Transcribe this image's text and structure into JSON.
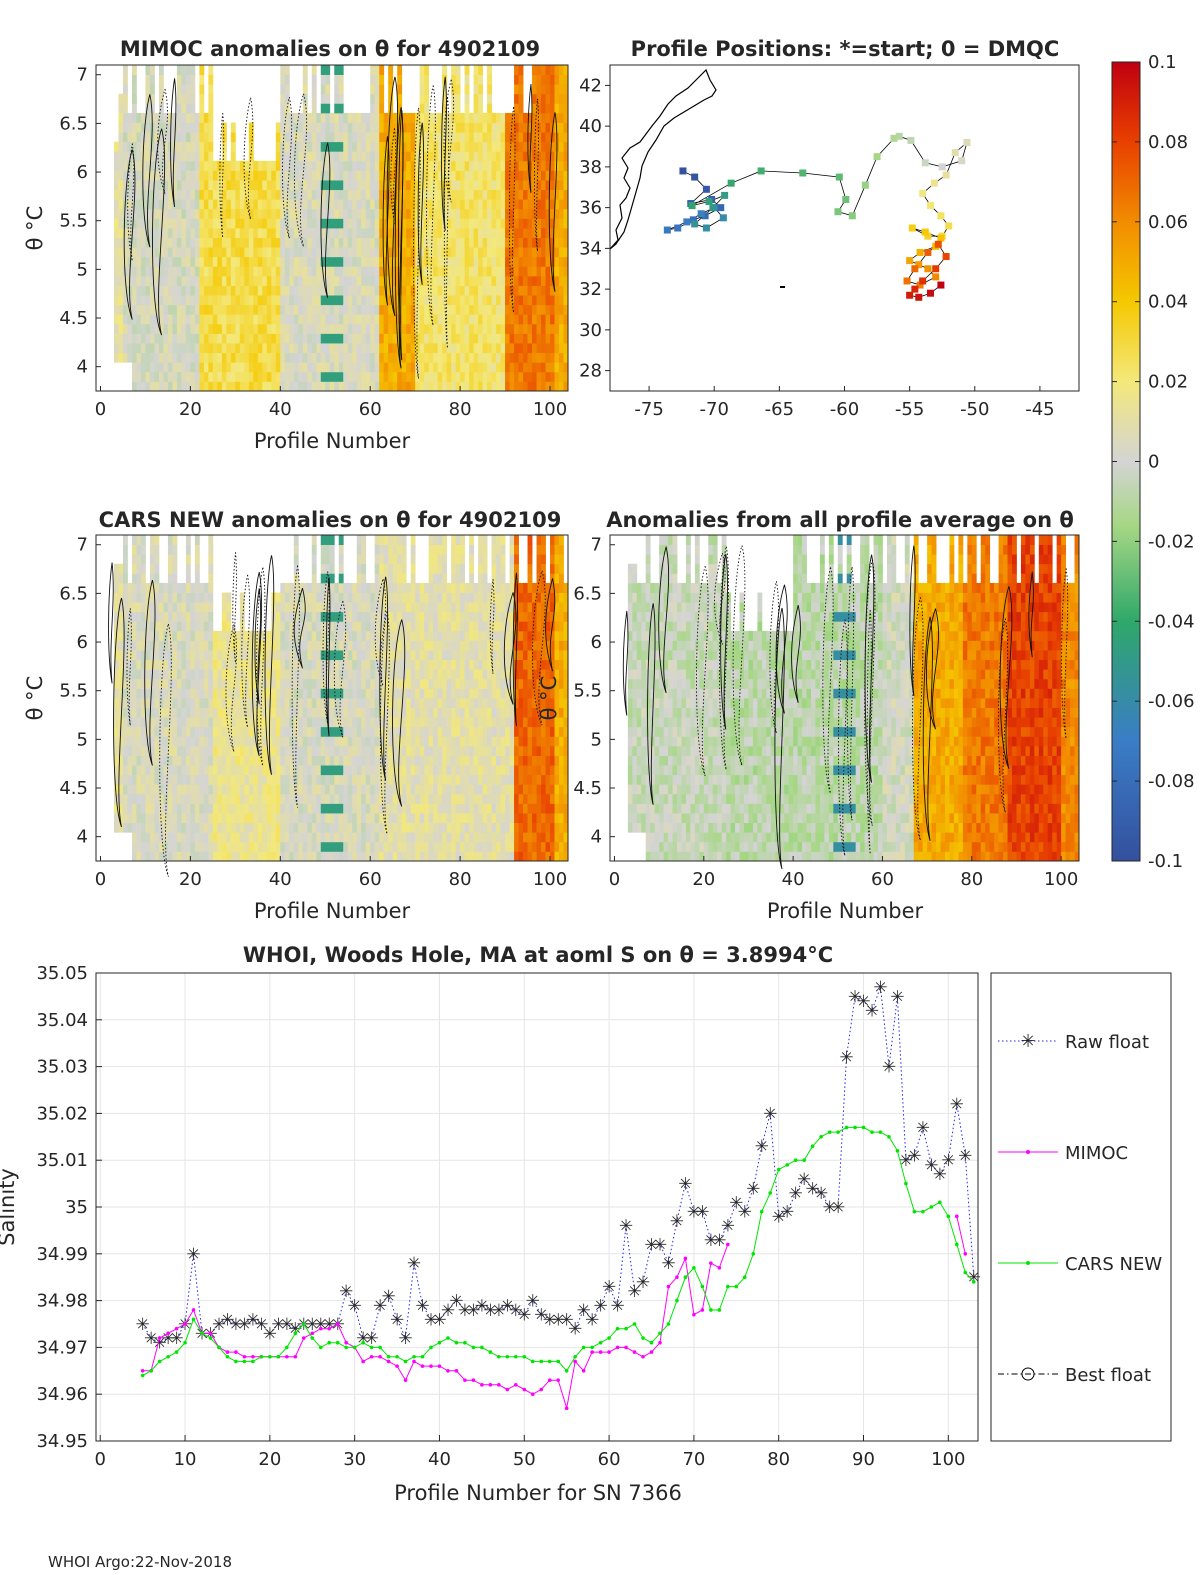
{
  "footer": "WHOI Argo:22-Nov-2018",
  "colorbar": {
    "ticks": [
      "0.1",
      "0.08",
      "0.06",
      "0.04",
      "0.02",
      "0",
      "-0.02",
      "-0.04",
      "-0.06",
      "-0.08",
      "-0.1"
    ],
    "range": [
      -0.1,
      0.1
    ]
  },
  "chart_data": [
    {
      "type": "heatmap",
      "id": "mimoc",
      "title": "MIMOC anomalies on θ  for 4902109",
      "xlabel": "Profile Number",
      "ylabel": "θ °C",
      "xlim": [
        -1,
        104
      ],
      "ylim": [
        3.75,
        7.1
      ],
      "xticks": [
        "0",
        "20",
        "40",
        "60",
        "80",
        "100"
      ],
      "yticks": [
        "4",
        "4.5",
        "5",
        "5.5",
        "6",
        "6.5",
        "7"
      ],
      "description_bands": [
        [
          0,
          5,
          0.01
        ],
        [
          5,
          15,
          0.0
        ],
        [
          15,
          25,
          0.01
        ],
        [
          25,
          40,
          0.025
        ],
        [
          40,
          62,
          0.005
        ],
        [
          62,
          75,
          0.045
        ],
        [
          75,
          90,
          0.02
        ],
        [
          90,
          100,
          0.06
        ],
        [
          100,
          104,
          0.05
        ]
      ]
    },
    {
      "type": "scatter",
      "id": "positions",
      "title": "Profile Positions: *=start; 0 = DMQC",
      "xlim": [
        -78,
        -42
      ],
      "ylim": [
        27,
        43
      ],
      "xticks": [
        "-75",
        "-70",
        "-65",
        "-60",
        "-55",
        "-50",
        "-45"
      ],
      "yticks": [
        "28",
        "30",
        "32",
        "34",
        "36",
        "38",
        "40",
        "42"
      ],
      "lon": [
        -72.4,
        -71.5,
        -70.6,
        -71.8,
        -70.2,
        -69.5,
        -70.7,
        -71.6,
        -72.8,
        -73.6,
        -72.1,
        -71.0,
        -70.0,
        -69.3,
        -70.6,
        -71.5,
        -70.1,
        -69.2,
        -70.4,
        -71.7,
        -68.7,
        -66.4,
        -63.2,
        -60.4,
        -59.9,
        -60.5,
        -59.4,
        -58.4,
        -57.5,
        -56.2,
        -55.8,
        -54.9,
        -53.8,
        -52.5,
        -51.0,
        -50.6,
        -51.5,
        -52.2,
        -53.1,
        -54.0,
        -53.4,
        -52.6,
        -52.0,
        -52.5,
        -53.6,
        -54.8,
        -53.8,
        -52.6,
        -53.0,
        -54.2,
        -55.0,
        -54.3,
        -53.6,
        -53.0,
        -54.2,
        -55.2,
        -54.6,
        -53.6,
        -52.8,
        -52.2,
        -53.0,
        -54.0,
        -54.6,
        -55.0,
        -54.3,
        -53.4,
        -52.6
      ],
      "lat": [
        37.8,
        37.5,
        36.9,
        36.2,
        36.4,
        36.0,
        35.6,
        35.4,
        35.0,
        34.9,
        35.3,
        35.7,
        36.0,
        35.5,
        35.0,
        35.2,
        36.0,
        36.6,
        36.3,
        36.1,
        37.2,
        37.8,
        37.7,
        37.5,
        36.4,
        35.8,
        35.6,
        37.1,
        38.5,
        39.4,
        39.5,
        39.3,
        38.2,
        38.0,
        38.3,
        39.2,
        38.7,
        37.6,
        37.2,
        36.7,
        36.1,
        35.6,
        35.1,
        34.6,
        34.6,
        35.0,
        34.8,
        34.5,
        34.1,
        33.8,
        33.4,
        33.2,
        33.0,
        32.6,
        32.2,
        32.4,
        33.0,
        33.8,
        34.2,
        33.6,
        33.0,
        32.4,
        32.0,
        31.7,
        31.6,
        31.8,
        32.2
      ]
    },
    {
      "type": "heatmap",
      "id": "cars",
      "title": "CARS NEW anomalies on θ for 4902109",
      "xlabel": "Profile Number",
      "ylabel": "θ °C",
      "xlim": [
        -1,
        104
      ],
      "ylim": [
        3.75,
        7.1
      ],
      "xticks": [
        "0",
        "20",
        "40",
        "60",
        "80",
        "100"
      ],
      "yticks": [
        "4",
        "4.5",
        "5",
        "5.5",
        "6",
        "6.5",
        "7"
      ]
    },
    {
      "type": "heatmap",
      "id": "allavg",
      "title": "Anomalies from all profile average on θ",
      "xlabel": "Profile Number",
      "ylabel": "θ °C",
      "xlim": [
        -1,
        104
      ],
      "ylim": [
        3.75,
        7.1
      ],
      "xticks": [
        "0",
        "20",
        "40",
        "60",
        "80",
        "100"
      ],
      "yticks": [
        "4",
        "4.5",
        "5",
        "5.5",
        "6",
        "6.5",
        "7"
      ]
    },
    {
      "type": "line",
      "id": "salinity",
      "title": "WHOI, Woods Hole, MA at aoml S on θ = 3.8994°C",
      "xlabel": "Profile Number for SN 7366",
      "ylabel": "Salinity",
      "xlim": [
        -0.5,
        103.5
      ],
      "ylim": [
        34.95,
        35.05
      ],
      "xticks": [
        "0",
        "10",
        "20",
        "30",
        "40",
        "50",
        "60",
        "70",
        "80",
        "90",
        "100"
      ],
      "yticks": [
        "34.95",
        "34.96",
        "34.97",
        "34.98",
        "34.99",
        "35",
        "35.01",
        "35.02",
        "35.03",
        "35.04",
        "35.05"
      ],
      "legend": [
        "Raw float",
        "MIMOC",
        "CARS NEW",
        "Best float"
      ],
      "x_start": 5,
      "series": [
        {
          "name": "Raw float",
          "color": "#2525e6",
          "values": [
            34.975,
            34.972,
            34.971,
            34.972,
            34.972,
            34.975,
            34.99,
            34.973,
            34.973,
            34.975,
            34.976,
            34.975,
            34.975,
            34.976,
            34.975,
            34.973,
            34.975,
            34.975,
            34.974,
            34.975,
            34.975,
            34.975,
            34.975,
            34.975,
            34.982,
            34.979,
            34.972,
            34.972,
            34.979,
            34.981,
            34.976,
            34.972,
            34.988,
            34.979,
            34.976,
            34.976,
            34.978,
            34.98,
            34.978,
            34.978,
            34.979,
            34.978,
            34.978,
            34.979,
            34.978,
            34.977,
            34.98,
            34.977,
            34.976,
            34.976,
            34.976,
            34.974,
            34.978,
            34.976,
            34.979,
            34.983,
            34.979,
            34.996,
            34.982,
            34.984,
            34.992,
            34.992,
            34.988,
            34.997,
            35.005,
            34.999,
            34.999,
            34.993,
            34.993,
            34.996,
            35.001,
            34.999,
            35.004,
            35.013,
            35.02,
            34.998,
            34.999,
            35.003,
            35.006,
            35.004,
            35.003,
            35.0,
            35.0,
            35.032,
            35.045,
            35.044,
            35.042,
            35.047,
            35.03,
            35.045,
            35.01,
            35.011,
            35.017,
            35.009,
            35.007,
            35.01,
            35.022,
            35.011,
            34.985
          ]
        },
        {
          "name": "MIMOC",
          "color": "#ff00ff",
          "values": [
            34.965,
            34.965,
            34.972,
            34.973,
            34.974,
            34.975,
            34.978,
            34.973,
            34.973,
            34.97,
            34.969,
            34.969,
            34.968,
            34.968,
            34.968,
            34.968,
            34.968,
            34.968,
            34.968,
            34.972,
            34.973,
            34.974,
            34.974,
            34.975,
            34.971,
            34.97,
            34.967,
            34.968,
            34.968,
            34.967,
            34.966,
            34.963,
            34.967,
            34.966,
            34.966,
            34.966,
            34.965,
            34.965,
            34.963,
            34.963,
            34.962,
            34.962,
            34.962,
            34.961,
            34.962,
            34.961,
            34.96,
            34.961,
            34.963,
            34.963,
            34.957,
            34.967,
            34.965,
            34.969,
            34.969,
            34.969,
            34.97,
            34.97,
            34.969,
            34.968,
            34.969,
            34.971,
            34.983,
            34.985,
            34.989,
            34.977,
            34.978,
            34.988,
            34.987,
            34.992,
            null,
            null,
            null,
            null,
            null,
            null,
            null,
            null,
            null,
            null,
            null,
            null,
            null,
            null,
            null,
            null,
            null,
            null,
            null,
            null,
            null,
            null,
            null,
            null,
            null,
            null,
            34.998,
            34.99,
            null
          ]
        },
        {
          "name": "CARS NEW",
          "color": "#00e600",
          "values": [
            34.964,
            34.965,
            34.967,
            34.968,
            34.969,
            34.971,
            34.976,
            34.973,
            34.972,
            34.97,
            34.968,
            34.967,
            34.967,
            34.967,
            34.968,
            34.968,
            34.968,
            34.97,
            34.973,
            34.975,
            34.972,
            34.97,
            34.971,
            34.971,
            34.97,
            34.97,
            34.971,
            34.97,
            34.97,
            34.968,
            34.968,
            34.967,
            34.968,
            34.968,
            34.97,
            34.971,
            34.972,
            34.971,
            34.971,
            34.97,
            34.97,
            34.969,
            34.968,
            34.968,
            34.968,
            34.968,
            34.967,
            34.967,
            34.967,
            34.967,
            34.965,
            34.968,
            34.97,
            34.97,
            34.971,
            34.972,
            34.974,
            34.974,
            34.975,
            34.972,
            34.971,
            34.973,
            34.975,
            34.98,
            34.985,
            34.987,
            34.983,
            34.978,
            34.978,
            34.983,
            34.983,
            34.985,
            34.99,
            34.999,
            35.003,
            35.008,
            35.009,
            35.01,
            35.01,
            35.013,
            35.015,
            35.016,
            35.016,
            35.017,
            35.017,
            35.017,
            35.016,
            35.016,
            35.015,
            35.012,
            35.005,
            34.999,
            34.999,
            35.0,
            35.001,
            34.998,
            34.992,
            34.986,
            34.984
          ]
        }
      ]
    }
  ]
}
